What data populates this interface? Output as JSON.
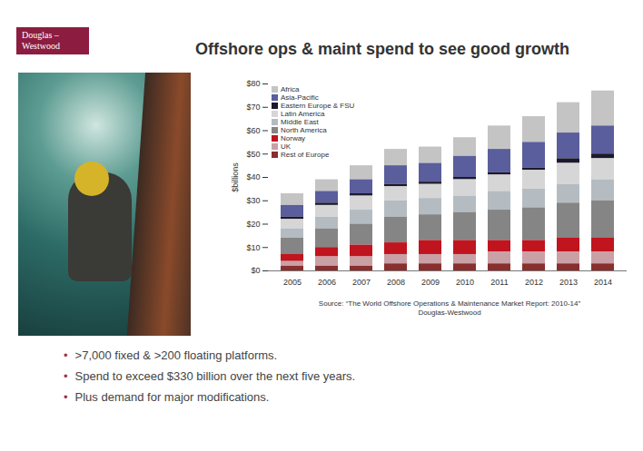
{
  "slide": {
    "logo": [
      "Douglas –",
      "Westwood"
    ],
    "title": "Offshore ops & maint spend to see good growth",
    "source": [
      "Source: “The World Offshore Operations & Maintenance Market Report: 2010-14”",
      "Douglas-Westwood"
    ],
    "bullets": [
      ">7,000 fixed & >200 floating platforms.",
      "Spend to exceed $330 billion over the next five years.",
      "Plus demand for major modifications."
    ]
  },
  "chart_data": {
    "type": "bar",
    "stacked": true,
    "legend": "top-left",
    "grid": false,
    "y_label": "$billions",
    "categories": [
      "2005",
      "2006",
      "2007",
      "2008",
      "2009",
      "2010",
      "2011",
      "2012",
      "2013",
      "2014"
    ],
    "ylim": [
      0,
      80
    ],
    "yticks": [
      {
        "value": 0,
        "label": "$0"
      },
      {
        "value": 10,
        "label": "$10"
      },
      {
        "value": 20,
        "label": "$20"
      },
      {
        "value": 30,
        "label": "$30"
      },
      {
        "value": 40,
        "label": "$40"
      },
      {
        "value": 50,
        "label": "$50"
      },
      {
        "value": 60,
        "label": "$60"
      },
      {
        "value": 70,
        "label": "$70"
      },
      {
        "value": 80,
        "label": "$80"
      }
    ],
    "series": [
      {
        "name": "Africa",
        "color": "#c4c4c4",
        "values": [
          5,
          5,
          6,
          7,
          7,
          8,
          10,
          11,
          13,
          15
        ]
      },
      {
        "name": "Asia-Pacific",
        "color": "#5a5e9c",
        "values": [
          5,
          5,
          6,
          8,
          8,
          9,
          10,
          11,
          11,
          12
        ]
      },
      {
        "name": "Eastern Europe & FSU",
        "color": "#1c1a2a",
        "values": [
          1,
          1,
          1,
          1,
          1,
          1,
          1,
          1,
          2,
          2
        ]
      },
      {
        "name": "Latin America",
        "color": "#d6d6d6",
        "values": [
          4,
          5,
          6,
          6,
          6,
          7,
          7,
          8,
          9,
          9
        ]
      },
      {
        "name": "Middle East",
        "color": "#b4bcc2",
        "values": [
          4,
          5,
          6,
          7,
          7,
          7,
          8,
          8,
          8,
          9
        ]
      },
      {
        "name": "North America",
        "color": "#858585",
        "values": [
          7,
          8,
          9,
          11,
          11,
          12,
          13,
          14,
          15,
          16
        ]
      },
      {
        "name": "Norway",
        "color": "#c0141e",
        "values": [
          3,
          4,
          5,
          5,
          6,
          6,
          5,
          5,
          6,
          6
        ]
      },
      {
        "name": "UK",
        "color": "#c9a0a6",
        "values": [
          2,
          4,
          4,
          4,
          4,
          4,
          5,
          5,
          5,
          5
        ]
      },
      {
        "name": "Rest of Europe",
        "color": "#8a2e2e",
        "values": [
          2,
          2,
          2,
          3,
          3,
          3,
          3,
          3,
          3,
          3
        ]
      }
    ]
  }
}
